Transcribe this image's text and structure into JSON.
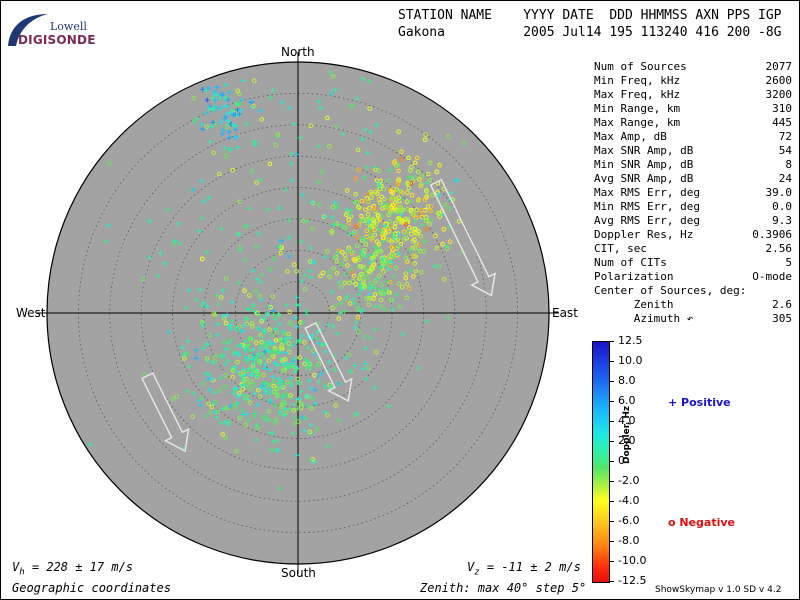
{
  "logo": {
    "line1": "Lowell",
    "line2": "DIGISONDE"
  },
  "header": {
    "line1": "STATION NAME    YYYY DATE  DDD HHMMSS AXN PPS IGP",
    "line2": "Gakona          2005 Jul14 195 113240 416 200 -8G"
  },
  "stats": [
    {
      "label": "Num of Sources",
      "value": "2077"
    },
    {
      "label": "Min Freq, kHz",
      "value": "2600"
    },
    {
      "label": "Max Freq, kHz",
      "value": "3200"
    },
    {
      "label": "Min Range, km",
      "value": "310"
    },
    {
      "label": "Max Range, km",
      "value": "445"
    },
    {
      "label": "Max Amp, dB",
      "value": "72"
    },
    {
      "label": "Max SNR Amp, dB",
      "value": "54"
    },
    {
      "label": "Min SNR Amp, dB",
      "value": "8"
    },
    {
      "label": "Avg SNR Amp, dB",
      "value": "24"
    },
    {
      "label": "Max RMS Err, deg",
      "value": "39.0"
    },
    {
      "label": "Min RMS Err, deg",
      "value": "0.0"
    },
    {
      "label": "Avg RMS Err, deg",
      "value": "9.3"
    },
    {
      "label": "Doppler Res, Hz",
      "value": "0.3906"
    },
    {
      "label": "CIT, sec",
      "value": "2.56"
    },
    {
      "label": "Num of CITs",
      "value": "5"
    },
    {
      "label": "Polarization",
      "value": "O-mode"
    },
    {
      "label": "Center of Sources, deg:",
      "value": ""
    },
    {
      "label": "      Zenith",
      "value": "2.6"
    },
    {
      "label": "      Azimuth ↶",
      "value": "305"
    }
  ],
  "colorbar": {
    "label": "Doppler, Hz",
    "ticks": [
      "12.5",
      "10.0",
      "8.0",
      "6.0",
      "4.0",
      "2.0",
      "0",
      "-2.0",
      "-4.0",
      "-6.0",
      "-8.0",
      "-10.0",
      "-12.5"
    ],
    "positive_label": "+ Positive",
    "negative_label": "o Negative",
    "positive_color": "#1a14c8",
    "negative_color": "#d81010"
  },
  "footer": {
    "vh": "V",
    "vh_sub": "h",
    "vh_val": " = 228 ± 17 m/s",
    "vz": "V",
    "vz_sub": "z",
    "vz_val": " = -11 ± 2 m/s",
    "coords": "Geographic coordinates",
    "zenith": "Zenith: max 40°  step 5°",
    "version": "ShowSkymap v 1.0   SD v 4.2"
  },
  "chart_data": {
    "type": "scatter",
    "projection": "polar-skymap",
    "directions": {
      "north": "North",
      "south": "South",
      "east": "East",
      "west": "West"
    },
    "zenith_max_deg": 40,
    "zenith_step_deg": 5,
    "background": "#a3a3a3",
    "clusters": [
      {
        "az_deg": 210,
        "zenith_deg": 10,
        "spread_deg": 10,
        "count": 520,
        "doppler_mean": 1.0
      },
      {
        "az_deg": 45,
        "zenith_deg": 22,
        "spread_deg": 7,
        "count": 320,
        "doppler_mean": -3.0
      },
      {
        "az_deg": 60,
        "zenith_deg": 12,
        "spread_deg": 6,
        "count": 160,
        "doppler_mean": -1.0
      },
      {
        "az_deg": 340,
        "zenith_deg": 34,
        "spread_deg": 4,
        "count": 70,
        "doppler_mean": 4.0
      },
      {
        "az_deg": 0,
        "zenith_deg": 20,
        "spread_deg": 25,
        "count": 260,
        "doppler_mean": 0.5
      }
    ],
    "arrows": [
      {
        "x": 0.55,
        "y": 0.52,
        "dx": 0.22,
        "dy": -0.45
      },
      {
        "x": -0.6,
        "y": -0.25,
        "dx": 0.15,
        "dy": -0.3
      },
      {
        "x": 0.05,
        "y": -0.05,
        "dx": 0.15,
        "dy": -0.3
      }
    ]
  }
}
